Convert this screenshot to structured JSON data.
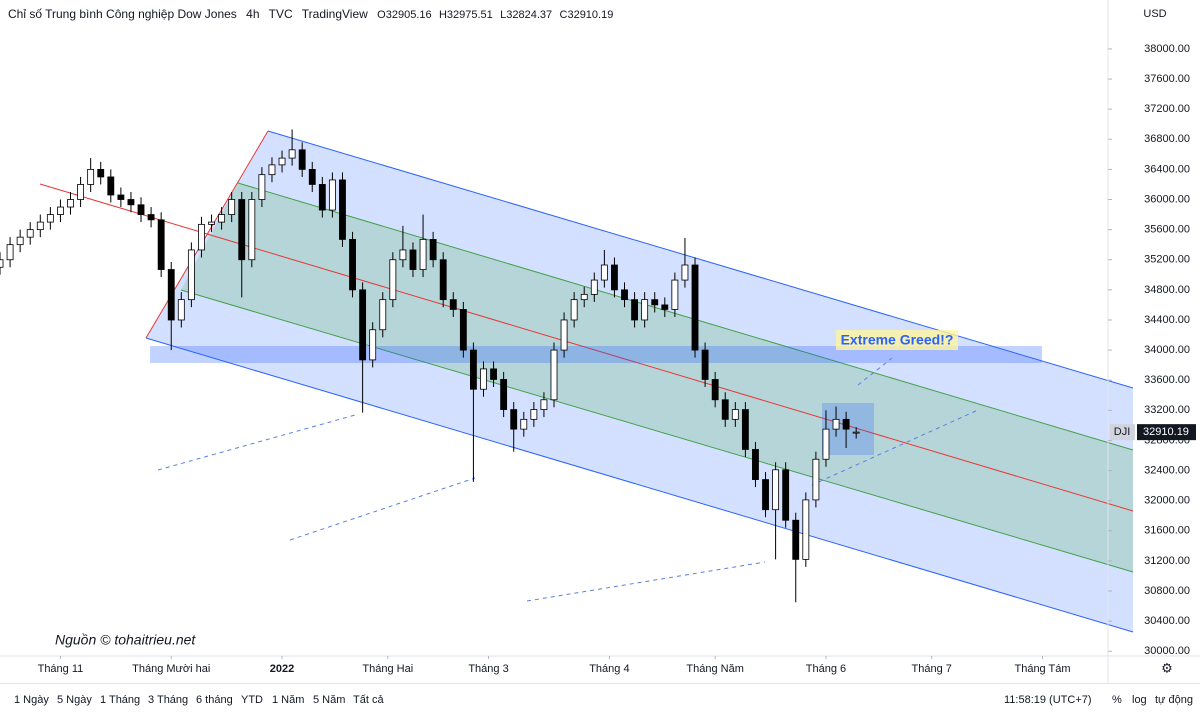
{
  "chart_data": {
    "type": "candlestick",
    "title": "Chỉ số Trung bình Công nghiệp Dow Jones",
    "interval": "4h",
    "source": "TVC",
    "platform": "TradingView",
    "symbol": "DJI",
    "currency": "USD",
    "annotation": "Extreme Greed!?",
    "credit": "Nguồn © tohaitrieu.net",
    "ohlc_prefixes": [
      "O",
      "H",
      "L",
      "C"
    ],
    "up_color": "#ffffff",
    "down_color": "#000000",
    "open": [
      35100,
      35200,
      35400,
      35500,
      35600,
      35700,
      35800,
      35900,
      36000,
      36200,
      36400,
      36300,
      36060,
      36000,
      35930,
      35800,
      35730,
      35070,
      34400,
      34670,
      35330,
      35670,
      35700,
      35800,
      36000,
      35200,
      36000,
      36330,
      36460,
      36550,
      36660,
      36400,
      36200,
      35860,
      36260,
      35470,
      34800,
      33870,
      34270,
      34670,
      35200,
      35330,
      35070,
      35470,
      35200,
      34670,
      34540,
      34000,
      33480,
      33750,
      33610,
      33210,
      32950,
      33080,
      33210,
      33340,
      34000,
      34400,
      34670,
      34740,
      34930,
      35130,
      34800,
      34670,
      34400,
      34670,
      34600,
      34540,
      34930,
      35130,
      34000,
      33610,
      33340,
      33080,
      33210,
      32680,
      32280,
      31880,
      32410,
      31740,
      31220,
      32010,
      32550,
      32950,
      33080,
      32905.16
    ],
    "high": [
      35300,
      35500,
      35600,
      35700,
      35800,
      35900,
      36000,
      36100,
      36300,
      36550,
      36500,
      36400,
      36160,
      36100,
      36030,
      35900,
      35830,
      35170,
      34770,
      35430,
      35770,
      35800,
      35900,
      36100,
      36100,
      36100,
      36430,
      36560,
      36650,
      36930,
      36760,
      36500,
      36300,
      36360,
      36360,
      35570,
      34900,
      34370,
      34770,
      35300,
      35650,
      35430,
      35800,
      35570,
      35300,
      34770,
      34640,
      34100,
      33850,
      33850,
      33710,
      33310,
      33180,
      33310,
      33440,
      34100,
      34500,
      34770,
      34840,
      35030,
      35330,
      35230,
      34900,
      34770,
      34770,
      34770,
      34700,
      35030,
      35490,
      35230,
      34100,
      33710,
      33440,
      33310,
      33310,
      32780,
      32380,
      32510,
      32510,
      31840,
      32110,
      32650,
      33200,
      33250,
      33180,
      32975.51
    ],
    "low": [
      35000,
      35100,
      35300,
      35400,
      35500,
      35600,
      35700,
      35800,
      35900,
      36100,
      36200,
      35960,
      35900,
      35830,
      35700,
      35630,
      34970,
      34000,
      34300,
      34570,
      35230,
      35570,
      35600,
      35700,
      34700,
      35100,
      35900,
      36230,
      36360,
      36450,
      36300,
      36100,
      35760,
      35760,
      35370,
      34700,
      33170,
      33770,
      34170,
      34570,
      35100,
      34970,
      34970,
      35100,
      34570,
      34440,
      33900,
      32250,
      33380,
      33510,
      33110,
      32650,
      32850,
      32980,
      33110,
      33240,
      33900,
      34300,
      34570,
      34640,
      34830,
      34700,
      34570,
      34300,
      34300,
      34500,
      34440,
      34440,
      34830,
      33900,
      33510,
      33240,
      32980,
      32980,
      32580,
      32180,
      31780,
      31220,
      31640,
      30650,
      31120,
      31910,
      32450,
      32850,
      32700,
      32824.37
    ],
    "close": [
      35200,
      35400,
      35500,
      35600,
      35700,
      35800,
      35900,
      36000,
      36200,
      36400,
      36300,
      36060,
      36000,
      35930,
      35800,
      35730,
      35070,
      34400,
      34670,
      35330,
      35670,
      35700,
      35800,
      36000,
      35200,
      36000,
      36330,
      36460,
      36550,
      36660,
      36400,
      36200,
      35860,
      36260,
      35470,
      34800,
      33870,
      34270,
      34670,
      35200,
      35330,
      35070,
      35470,
      35200,
      34670,
      34540,
      34000,
      33480,
      33750,
      33610,
      33210,
      32950,
      33080,
      33210,
      33340,
      34000,
      34400,
      34670,
      34740,
      34930,
      35130,
      34800,
      34670,
      34400,
      34670,
      34600,
      34540,
      34930,
      35130,
      34000,
      33610,
      33340,
      33080,
      33210,
      32680,
      32280,
      31880,
      32410,
      31740,
      31220,
      32010,
      32550,
      32950,
      33080,
      32950,
      32910.19
    ],
    "xlim": [
      0,
      110
    ],
    "xticks": [
      {
        "value": 6,
        "label": "Tháng 11"
      },
      {
        "value": 17,
        "label": "Tháng Mười hai"
      },
      {
        "value": 28,
        "label": "2022"
      },
      {
        "value": 38.5,
        "label": "Tháng Hai"
      },
      {
        "value": 48.5,
        "label": "Tháng 3"
      },
      {
        "value": 60.5,
        "label": "Tháng 4"
      },
      {
        "value": 71,
        "label": "Tháng Năm"
      },
      {
        "value": 82,
        "label": "Tháng 6"
      },
      {
        "value": 92.5,
        "label": "Tháng 7"
      },
      {
        "value": 103.5,
        "label": "Tháng Tám"
      }
    ],
    "ylim": [
      29950,
      38650
    ],
    "yticks": [
      {
        "value": 30000,
        "label": "30000.00"
      },
      {
        "value": 30400,
        "label": "30400.00"
      },
      {
        "value": 30800,
        "label": "30800.00"
      },
      {
        "value": 31200,
        "label": "31200.00"
      },
      {
        "value": 31600,
        "label": "31600.00"
      },
      {
        "value": 32000,
        "label": "32000.00"
      },
      {
        "value": 32400,
        "label": "32400.00"
      },
      {
        "value": 32800,
        "label": "32800.00"
      },
      {
        "value": 33200,
        "label": "33200.00"
      },
      {
        "value": 33600,
        "label": "33600.00"
      },
      {
        "value": 34000,
        "label": "34000.00"
      },
      {
        "value": 34400,
        "label": "34400.00"
      },
      {
        "value": 34800,
        "label": "34800.00"
      },
      {
        "value": 35200,
        "label": "35200.00"
      },
      {
        "value": 35600,
        "label": "35600.00"
      },
      {
        "value": 36000,
        "label": "36000.00"
      },
      {
        "value": 36400,
        "label": "36400.00"
      },
      {
        "value": 36800,
        "label": "36800.00"
      },
      {
        "value": 37200,
        "label": "37200.00"
      },
      {
        "value": 37600,
        "label": "37600.00"
      },
      {
        "value": 38000,
        "label": "38000.00"
      }
    ]
  },
  "toolbar": {
    "ranges": [
      "1 Ngày",
      "5 Ngày",
      "1 Tháng",
      "3 Tháng",
      "6 tháng",
      "YTD",
      "1 Năm",
      "5 Năm",
      "Tất cả"
    ],
    "clock": "11:58:19 (UTC+7)",
    "options": [
      "%",
      "log",
      "tự động"
    ]
  }
}
